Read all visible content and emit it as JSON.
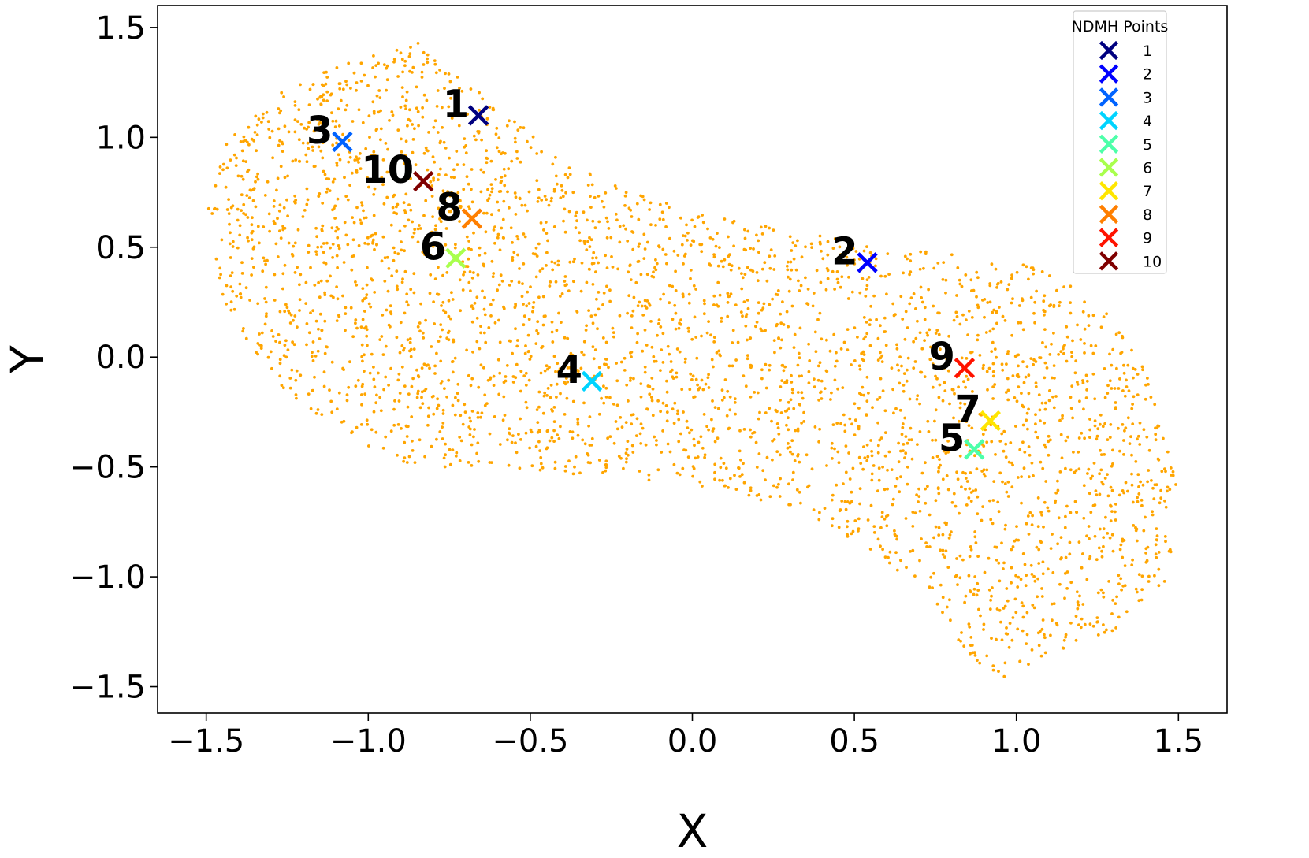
{
  "chart_data": {
    "type": "scatter",
    "title": "",
    "xlabel": "X",
    "ylabel": "Y",
    "xlim": [
      -1.65,
      1.65
    ],
    "ylim": [
      -1.62,
      1.6
    ],
    "xticks": [
      -1.5,
      -1.0,
      -0.5,
      0.0,
      0.5,
      1.0,
      1.5
    ],
    "yticks": [
      -1.5,
      -1.0,
      -0.5,
      0.0,
      0.5,
      1.0,
      1.5
    ],
    "xtick_labels": [
      "−1.5",
      "−1.0",
      "−0.5",
      "0.0",
      "0.5",
      "1.0",
      "1.5"
    ],
    "ytick_labels": [
      "−1.5",
      "−1.0",
      "−0.5",
      "0.0",
      "0.5",
      "1.0",
      "1.5"
    ],
    "grid": false,
    "background_points": {
      "color": "#FFA500",
      "approx_count": 3500,
      "region_outline": [
        [
          -1.5,
          0.68
        ],
        [
          -1.45,
          0.95
        ],
        [
          -1.3,
          1.2
        ],
        [
          -1.1,
          1.32
        ],
        [
          -0.92,
          1.4
        ],
        [
          -0.85,
          1.46
        ],
        [
          -0.8,
          1.38
        ],
        [
          -0.55,
          1.08
        ],
        [
          -0.4,
          0.9
        ],
        [
          -0.2,
          0.76
        ],
        [
          0.05,
          0.64
        ],
        [
          0.35,
          0.57
        ],
        [
          0.6,
          0.5
        ],
        [
          0.85,
          0.46
        ],
        [
          1.05,
          0.42
        ],
        [
          1.2,
          0.3
        ],
        [
          1.35,
          0.12
        ],
        [
          1.45,
          -0.25
        ],
        [
          1.5,
          -0.6
        ],
        [
          1.48,
          -1.0
        ],
        [
          1.3,
          -1.25
        ],
        [
          1.1,
          -1.35
        ],
        [
          0.95,
          -1.47
        ],
        [
          0.85,
          -1.35
        ],
        [
          0.7,
          -1.05
        ],
        [
          0.45,
          -0.8
        ],
        [
          0.15,
          -0.62
        ],
        [
          -0.2,
          -0.55
        ],
        [
          -0.5,
          -0.52
        ],
        [
          -0.85,
          -0.5
        ],
        [
          -1.1,
          -0.35
        ],
        [
          -1.3,
          -0.1
        ],
        [
          -1.45,
          0.25
        ]
      ]
    },
    "series": [
      {
        "name": "1",
        "x": -0.66,
        "y": 1.1,
        "color": "#00007F"
      },
      {
        "name": "2",
        "x": 0.54,
        "y": 0.43,
        "color": "#0000FF"
      },
      {
        "name": "3",
        "x": -1.08,
        "y": 0.98,
        "color": "#0063FF"
      },
      {
        "name": "4",
        "x": -0.31,
        "y": -0.11,
        "color": "#00D4FF"
      },
      {
        "name": "5",
        "x": 0.87,
        "y": -0.42,
        "color": "#4DFFA9"
      },
      {
        "name": "6",
        "x": -0.73,
        "y": 0.45,
        "color": "#A9FF4D"
      },
      {
        "name": "7",
        "x": 0.92,
        "y": -0.29,
        "color": "#FFE600"
      },
      {
        "name": "8",
        "x": -0.68,
        "y": 0.63,
        "color": "#FF7F00"
      },
      {
        "name": "9",
        "x": 0.84,
        "y": -0.05,
        "color": "#FF1300"
      },
      {
        "name": "10",
        "x": -0.83,
        "y": 0.8,
        "color": "#7F0000"
      }
    ],
    "legend": {
      "title": "NDMH Points",
      "placement": "top-right",
      "entries": [
        "1",
        "2",
        "3",
        "4",
        "5",
        "6",
        "7",
        "8",
        "9",
        "10"
      ]
    }
  }
}
